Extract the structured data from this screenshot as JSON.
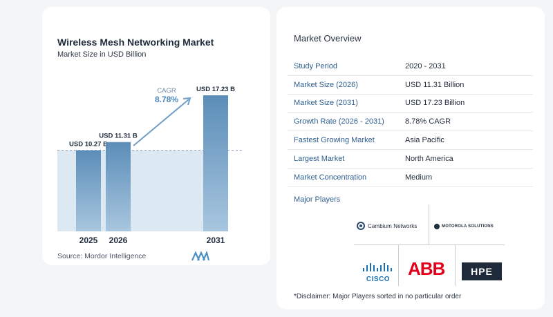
{
  "chart_data": {
    "type": "bar",
    "title": "Wireless Mesh Networking Market",
    "subtitle": "Market Size in USD Billion",
    "categories": [
      "2025",
      "2026",
      "2031"
    ],
    "values": [
      10.27,
      11.31,
      17.23
    ],
    "value_labels": [
      "USD 10.27 B",
      "USD 11.31 B",
      "USD 17.23 B"
    ],
    "cagr_label": "CAGR",
    "cagr_value": "8.78%",
    "ylim": [
      0,
      17.23
    ],
    "source": "Source:  Mordor Intelligence",
    "colors": {
      "bar": "#5b8db8",
      "bar_light": "#a8c6df",
      "shade": "#dde9f2",
      "arrow": "#6f9ec6"
    }
  },
  "overview": {
    "title": "Market Overview",
    "rows": [
      {
        "label": "Study Period",
        "value": "2020 - 2031"
      },
      {
        "label": "Market Size (2026)",
        "value": "USD 11.31 Billion"
      },
      {
        "label": "Market Size (2031)",
        "value": "USD 17.23 Billion"
      },
      {
        "label": "Growth Rate (2026 - 2031)",
        "value": "8.78% CAGR"
      },
      {
        "label": "Fastest Growing Market",
        "value": "Asia Pacific"
      },
      {
        "label": "Largest Market",
        "value": "North America"
      },
      {
        "label": "Market Concentration",
        "value": "Medium"
      }
    ]
  },
  "players": {
    "title": "Major Players",
    "cambium": "Cambium Networks",
    "motorola": "MOTOROLA SOLUTIONS",
    "cisco": "CISCO",
    "abb": "ABB",
    "hpe": "HPE"
  },
  "disclaimer": "*Disclaimer: Major Players sorted in no particular order"
}
